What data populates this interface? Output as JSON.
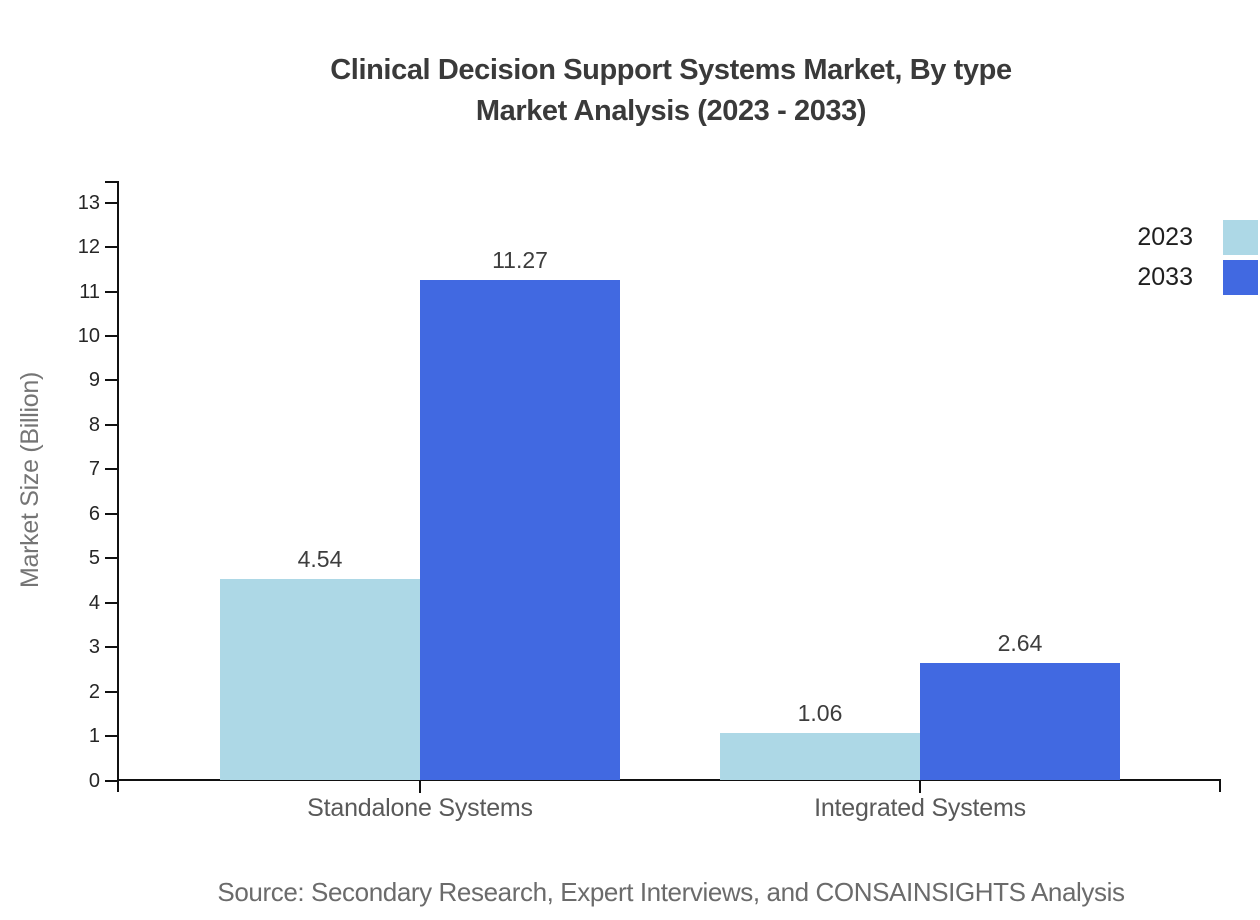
{
  "title": {
    "line1": "Clinical Decision Support Systems Market, By type",
    "line2": "Market Analysis (2023 - 2033)"
  },
  "source_note": "Source: Secondary Research, Expert Interviews, and CONSAINSIGHTS Analysis",
  "chart_data": {
    "type": "bar",
    "title": "Clinical Decision Support Systems Market, By type Market Analysis (2023 - 2033)",
    "categories": [
      "Standalone Systems",
      "Integrated Systems"
    ],
    "series": [
      {
        "name": "2023",
        "color": "#ADD8E6",
        "values": [
          4.54,
          1.06
        ]
      },
      {
        "name": "2033",
        "color": "#4169E1",
        "values": [
          11.27,
          2.64
        ]
      }
    ],
    "xlabel": "",
    "ylabel": "Market Size (Billion)",
    "ylim": [
      0,
      13
    ],
    "ytick_step": 1,
    "grid": false,
    "value_labels": true,
    "legend_position": "right-top"
  },
  "colors": {
    "series_2023": "#ADD8E6",
    "series_2033": "#4169E1",
    "title_text": "#3a3a3a",
    "axis_line": "#111111",
    "tick_label": "#262626",
    "value_label": "#3d3d3d",
    "category_label": "#595959",
    "y_axis_title": "#757575",
    "source_text": "#6b6b6b",
    "background": "#ffffff"
  }
}
